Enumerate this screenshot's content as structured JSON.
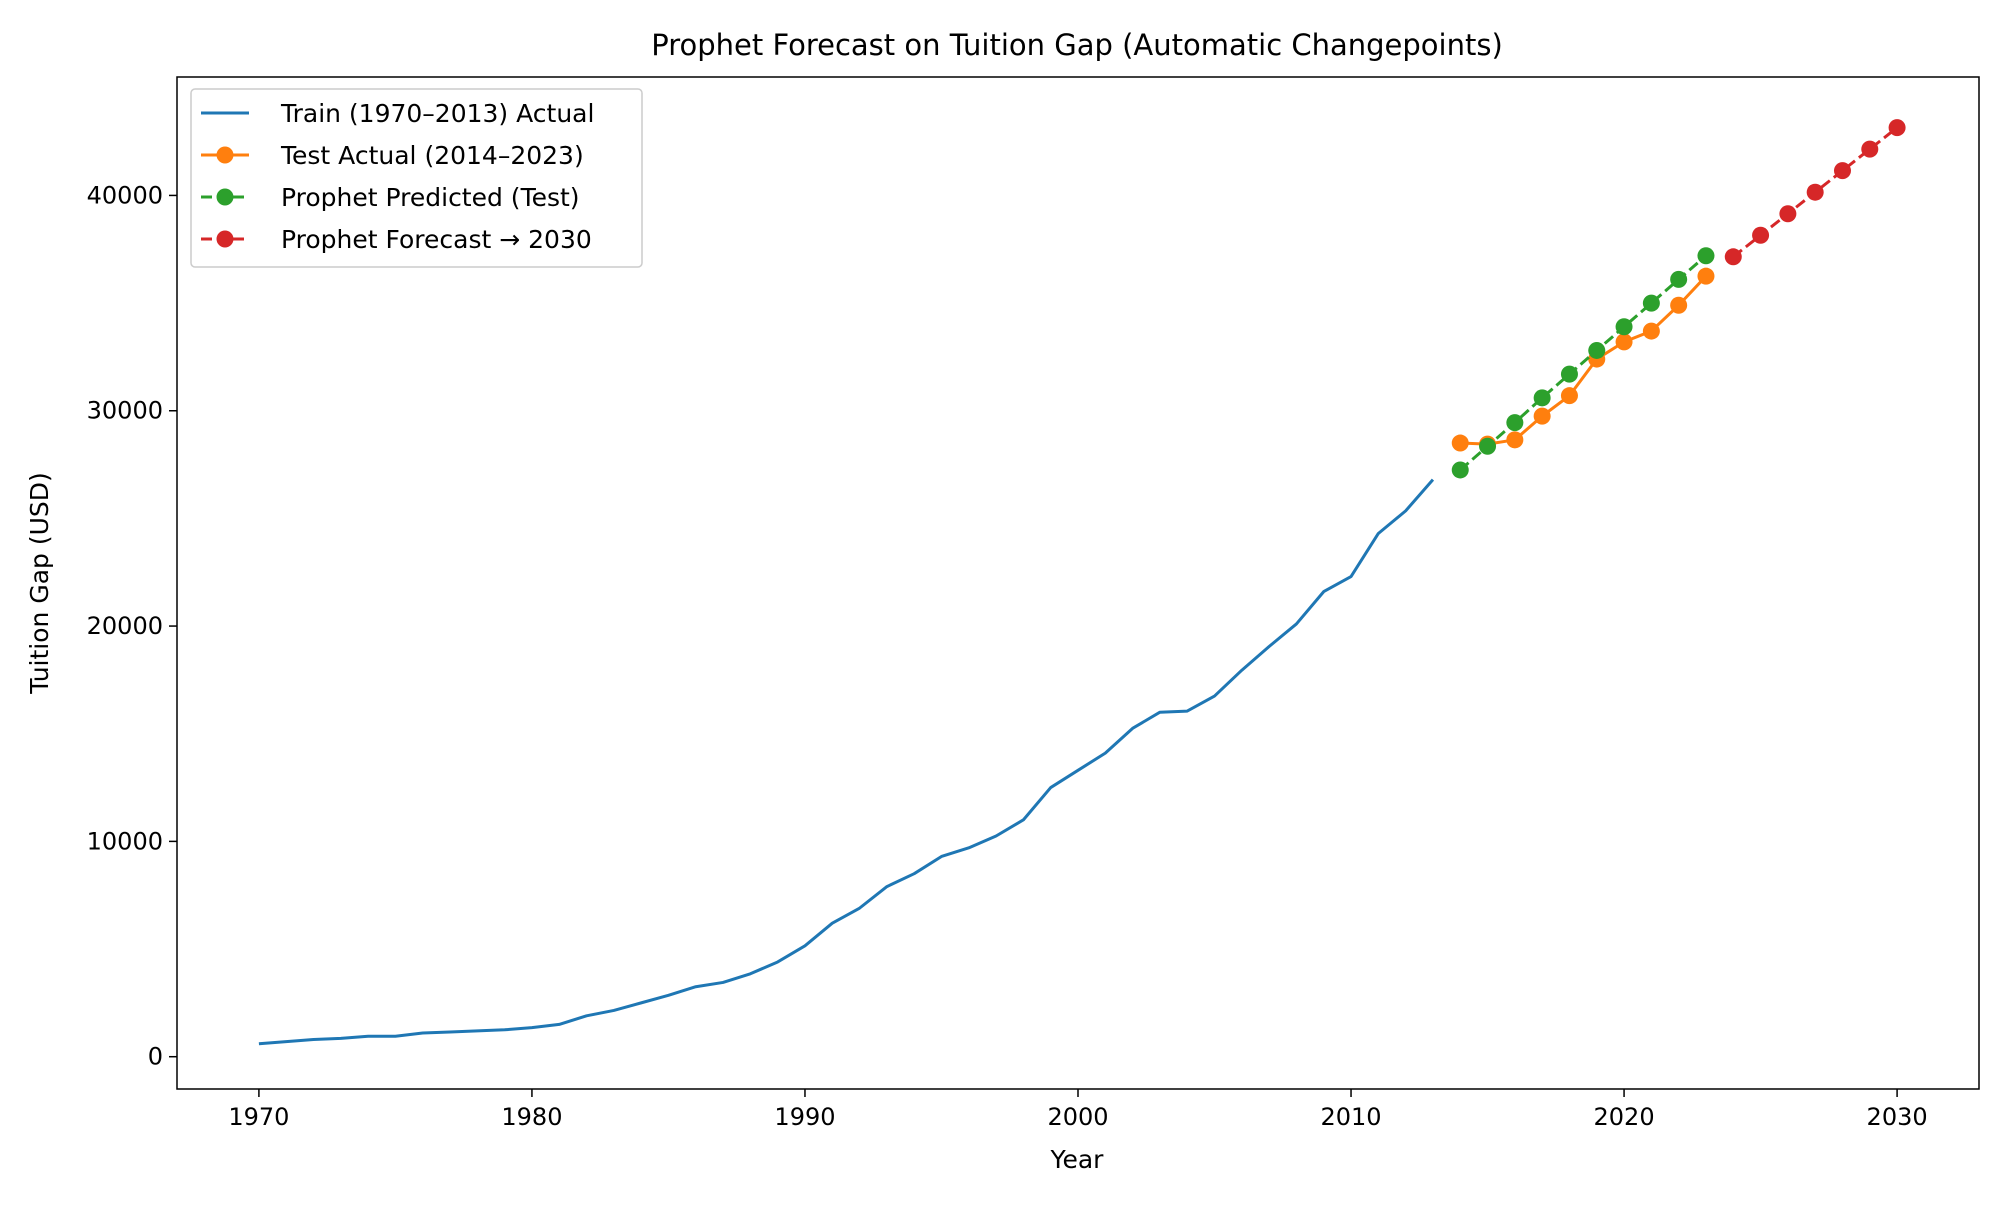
{
  "chart_data": {
    "type": "line",
    "title": "Prophet Forecast on Tuition Gap (Automatic Changepoints)",
    "xlabel": "Year",
    "ylabel": "Tuition Gap (USD)",
    "xlim": [
      1967,
      2033
    ],
    "ylim": [
      -1500,
      45500
    ],
    "xticks": [
      1970,
      1980,
      1990,
      2000,
      2010,
      2020,
      2030
    ],
    "yticks": [
      0,
      10000,
      20000,
      30000,
      40000
    ],
    "grid": false,
    "legend_position": "upper left",
    "series": [
      {
        "name": "Train (1970–2013) Actual",
        "color": "#1f77b4",
        "line_style": "solid",
        "marker": "none",
        "x": [
          1970,
          1971,
          1972,
          1973,
          1974,
          1975,
          1976,
          1977,
          1978,
          1979,
          1980,
          1981,
          1982,
          1983,
          1984,
          1985,
          1986,
          1987,
          1988,
          1989,
          1990,
          1991,
          1992,
          1993,
          1994,
          1995,
          1996,
          1997,
          1998,
          1999,
          2000,
          2001,
          2002,
          2003,
          2004,
          2005,
          2006,
          2007,
          2008,
          2009,
          2010,
          2011,
          2012,
          2013
        ],
        "y": [
          600,
          700,
          800,
          850,
          950,
          950,
          1100,
          1150,
          1200,
          1250,
          1350,
          1500,
          1900,
          2150,
          2500,
          2850,
          3250,
          3450,
          3850,
          4400,
          5150,
          6200,
          6900,
          7900,
          8500,
          9300,
          9700,
          10250,
          11000,
          12500,
          13300,
          14100,
          15250,
          16000,
          16050,
          16750,
          17950,
          19050,
          20100,
          21600,
          22300,
          24300,
          25350,
          26800
        ]
      },
      {
        "name": "Test Actual (2014–2023)",
        "color": "#ff7f0e",
        "line_style": "solid",
        "marker": "circle",
        "x": [
          2014,
          2015,
          2016,
          2017,
          2018,
          2019,
          2020,
          2021,
          2022,
          2023
        ],
        "y": [
          28500,
          28450,
          28650,
          29750,
          30700,
          32400,
          33200,
          33700,
          34900,
          36250
        ]
      },
      {
        "name": "Prophet Predicted (Test)",
        "color": "#2ca02c",
        "line_style": "dashed",
        "marker": "circle",
        "x": [
          2014,
          2015,
          2016,
          2017,
          2018,
          2019,
          2020,
          2021,
          2022,
          2023
        ],
        "y": [
          27250,
          28350,
          29450,
          30600,
          31700,
          32800,
          33900,
          35000,
          36100,
          37200
        ]
      },
      {
        "name": "Prophet Forecast → 2030",
        "color": "#d62728",
        "line_style": "dashed",
        "marker": "circle",
        "x": [
          2024,
          2025,
          2026,
          2027,
          2028,
          2029,
          2030
        ],
        "y": [
          37150,
          38150,
          39150,
          40150,
          41150,
          42150,
          43150
        ]
      }
    ]
  }
}
